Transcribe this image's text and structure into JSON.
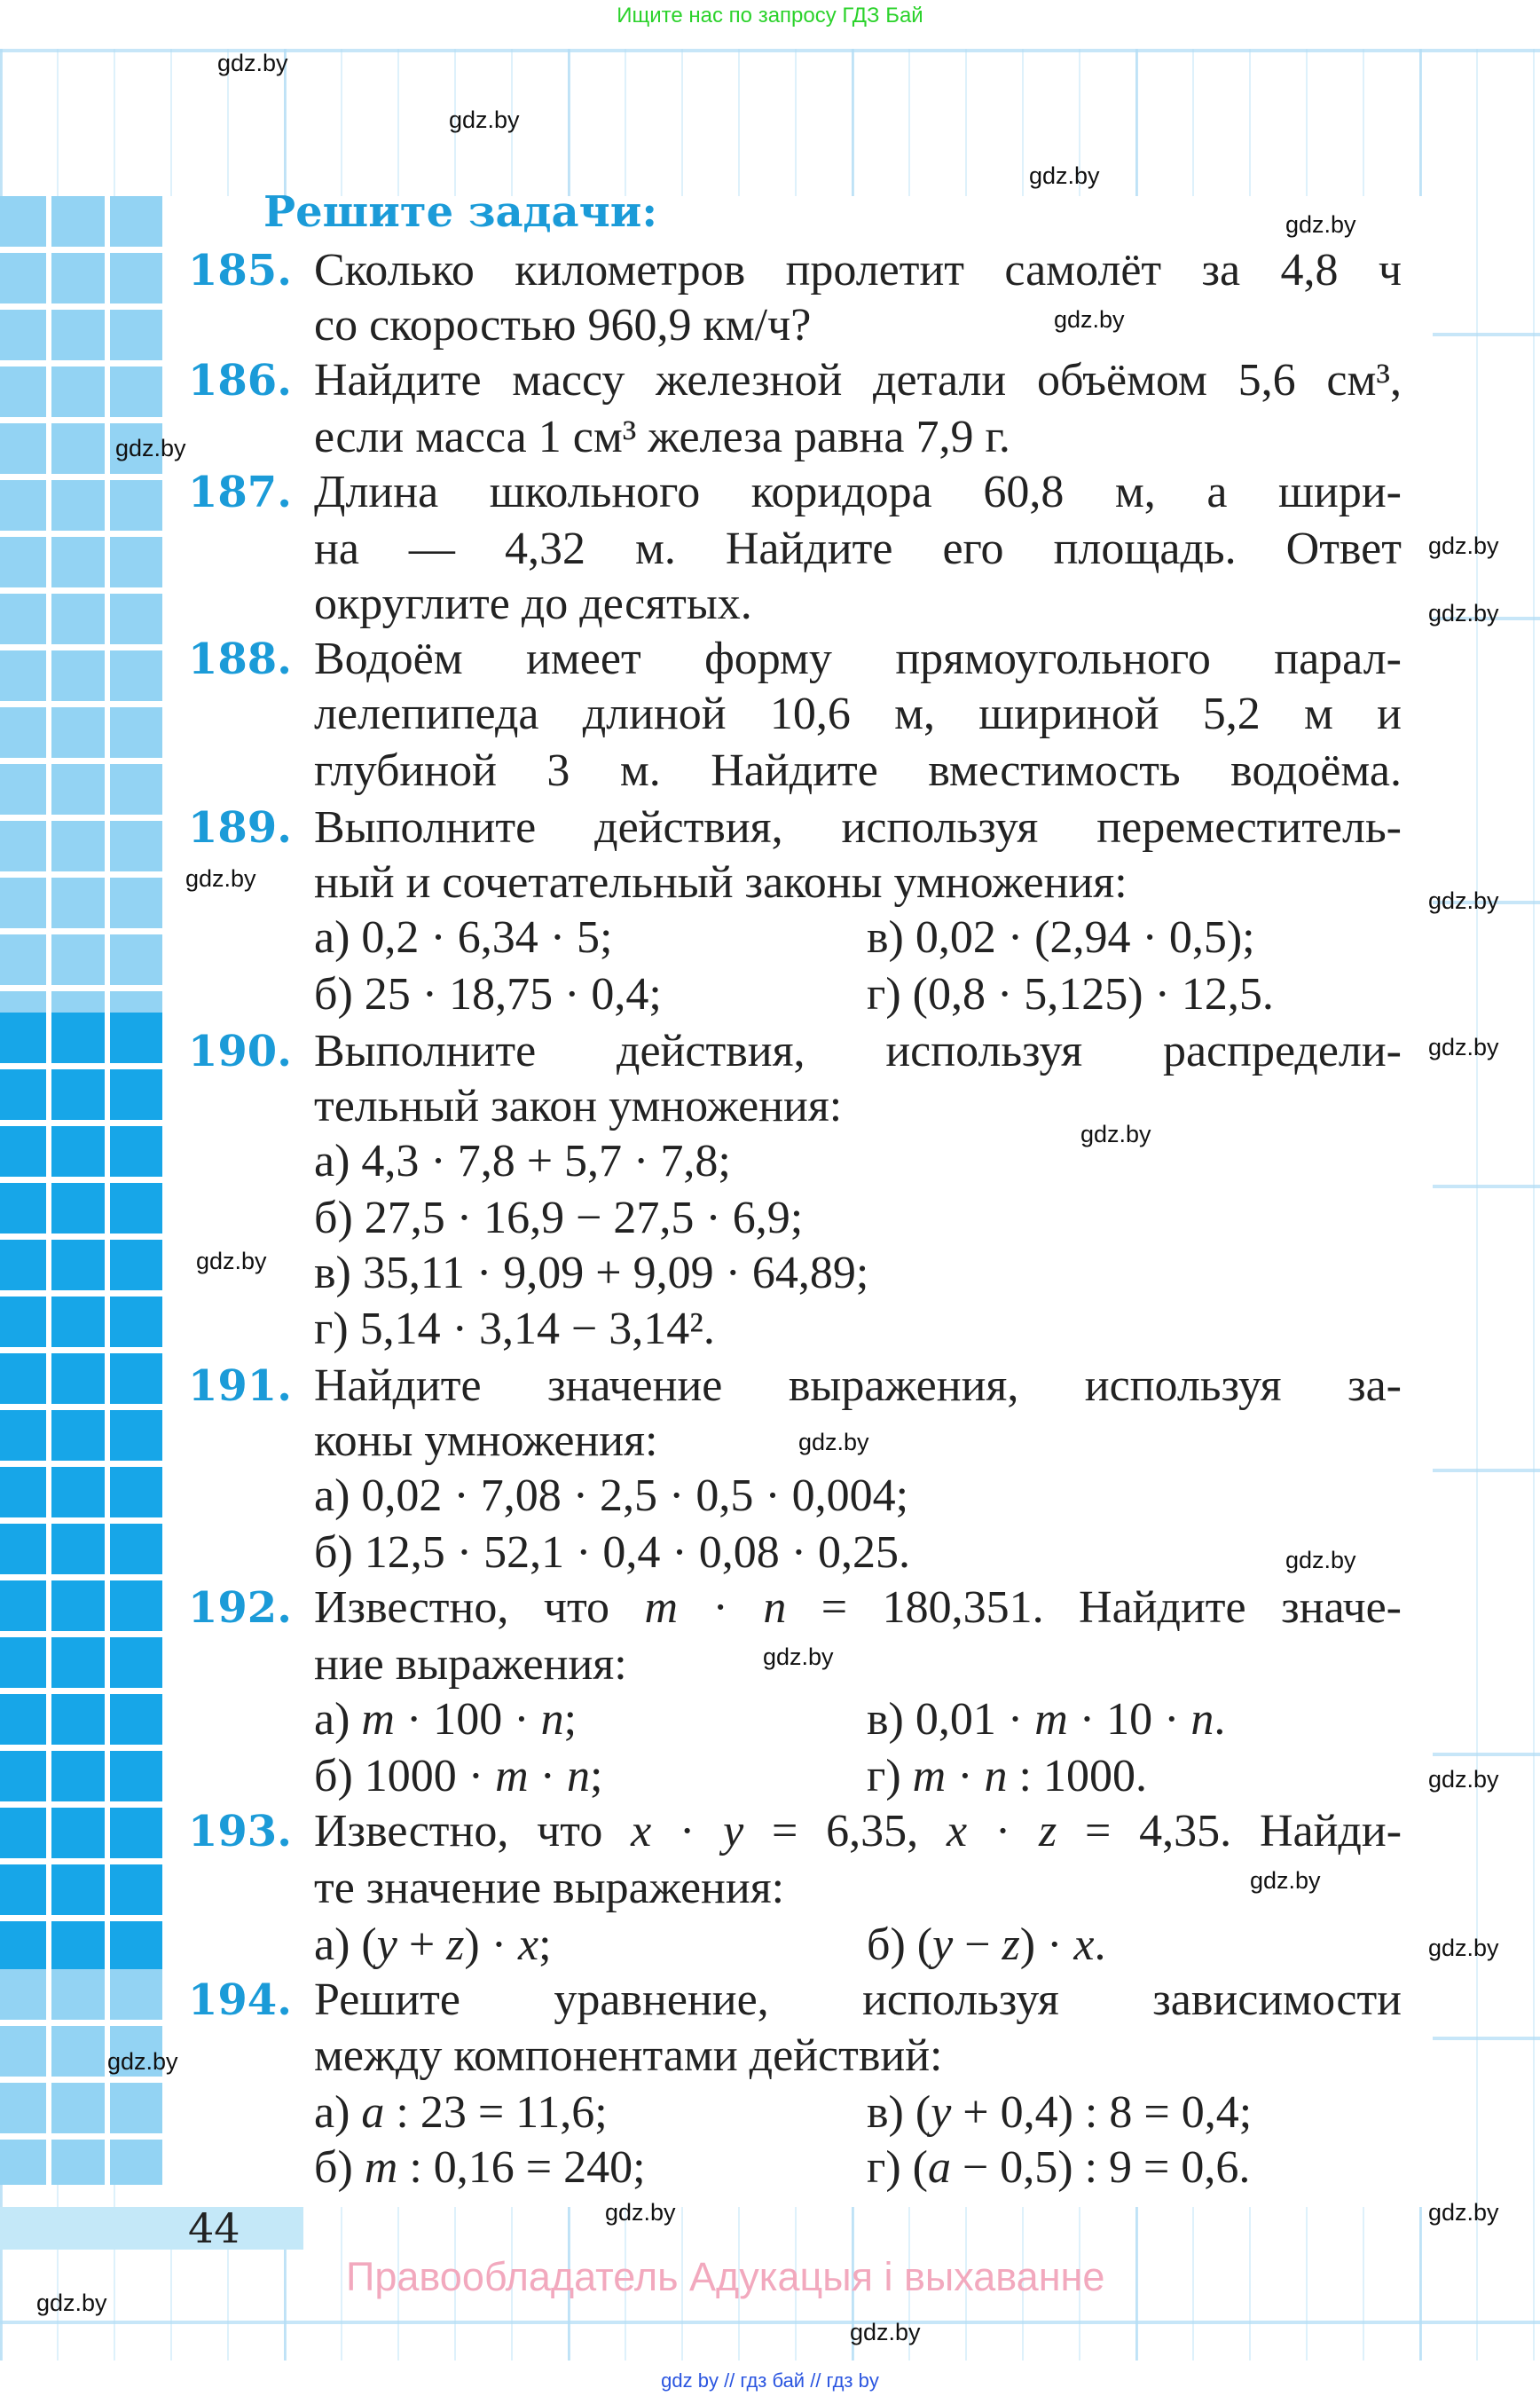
{
  "banner": "Ищите нас по запросу ГДЗ Бай",
  "watermark": "gdz.by",
  "heading": "Решите задачи:",
  "problems": [
    {
      "num": "185.",
      "lines": [
        "Сколько километров пролетит самолёт за 4,8 ч",
        "со скоростью 960,9 км/ч?"
      ]
    },
    {
      "num": "186.",
      "lines": [
        "Найдите массу железной детали объёмом 5,6 см³,",
        "если масса 1 см³ железа равна 7,9 г."
      ]
    },
    {
      "num": "187.",
      "lines": [
        "Длина школьного коридора 60,8 м, а шири-",
        "на — 4,32 м. Найдите его площадь. Ответ",
        "округлите до десятых."
      ]
    },
    {
      "num": "188.",
      "lines": [
        "Водоём имеет форму прямоугольного парал-",
        "лелепипеда длиной 10,6 м, шириной 5,2 м и",
        "глубиной 3 м. Найдите вместимость водоёма."
      ]
    },
    {
      "num": "189.",
      "lines": [
        "Выполните действия, используя переместитель-",
        "ный и сочетательный законы умножения:"
      ],
      "items": [
        "а) 0,2 · 6,34 · 5;",
        "в) 0,02 · (2,94 · 0,5);",
        "б) 25 · 18,75 · 0,4;",
        "г) (0,8 · 5,125) · 12,5."
      ]
    },
    {
      "num": "190.",
      "lines": [
        "Выполните действия, используя распредели-",
        "тельный закон умножения:"
      ],
      "items": [
        "а) 4,3 · 7,8 + 5,7 · 7,8;",
        "б) 27,5 · 16,9 − 27,5 · 6,9;",
        "в) 35,11 · 9,09 + 9,09 · 64,89;",
        "г) 5,14 · 3,14 − 3,14²."
      ]
    },
    {
      "num": "191.",
      "lines": [
        "Найдите значение выражения, используя за-",
        "коны умножения:"
      ],
      "items": [
        "а) 0,02 · 7,08 · 2,5 · 0,5 · 0,004;",
        "б) 12,5 · 52,1 · 0,4 · 0,08 · 0,25."
      ]
    },
    {
      "num": "192.",
      "lines": [
        "Известно, что m · n = 180,351. Найдите значе-",
        "ние выражения:"
      ],
      "items": [
        "а) m · 100 · n;",
        "в) 0,01 · m · 10 · n.",
        "б) 1000 · m · n;",
        "г) m · n : 1000."
      ]
    },
    {
      "num": "193.",
      "lines": [
        "Известно, что x · y = 6,35, x · z = 4,35. Найди-",
        "те значение выражения:"
      ],
      "items": [
        "а) (y + z) · x;",
        "б) (y − z) · x."
      ]
    },
    {
      "num": "194.",
      "lines": [
        "Решите уравнение, используя зависимости",
        "между компонентами действий:"
      ],
      "items": [
        "а) a : 23 = 11,6;",
        "в) (y + 0,4) : 8 = 0,4;",
        "б) m : 0,16 = 240;",
        "г) (a − 0,5) : 9 = 0,6."
      ]
    }
  ],
  "page_number": "44",
  "rights": "Правообладатель Адукацыя і выхаванне",
  "footer": "gdz by  //  гдз бай  //  гдз by",
  "colors": {
    "accent": "#1b9bd8",
    "banner": "#2bd22b",
    "rights": "#f2a9be",
    "footer": "#2a55e0"
  }
}
